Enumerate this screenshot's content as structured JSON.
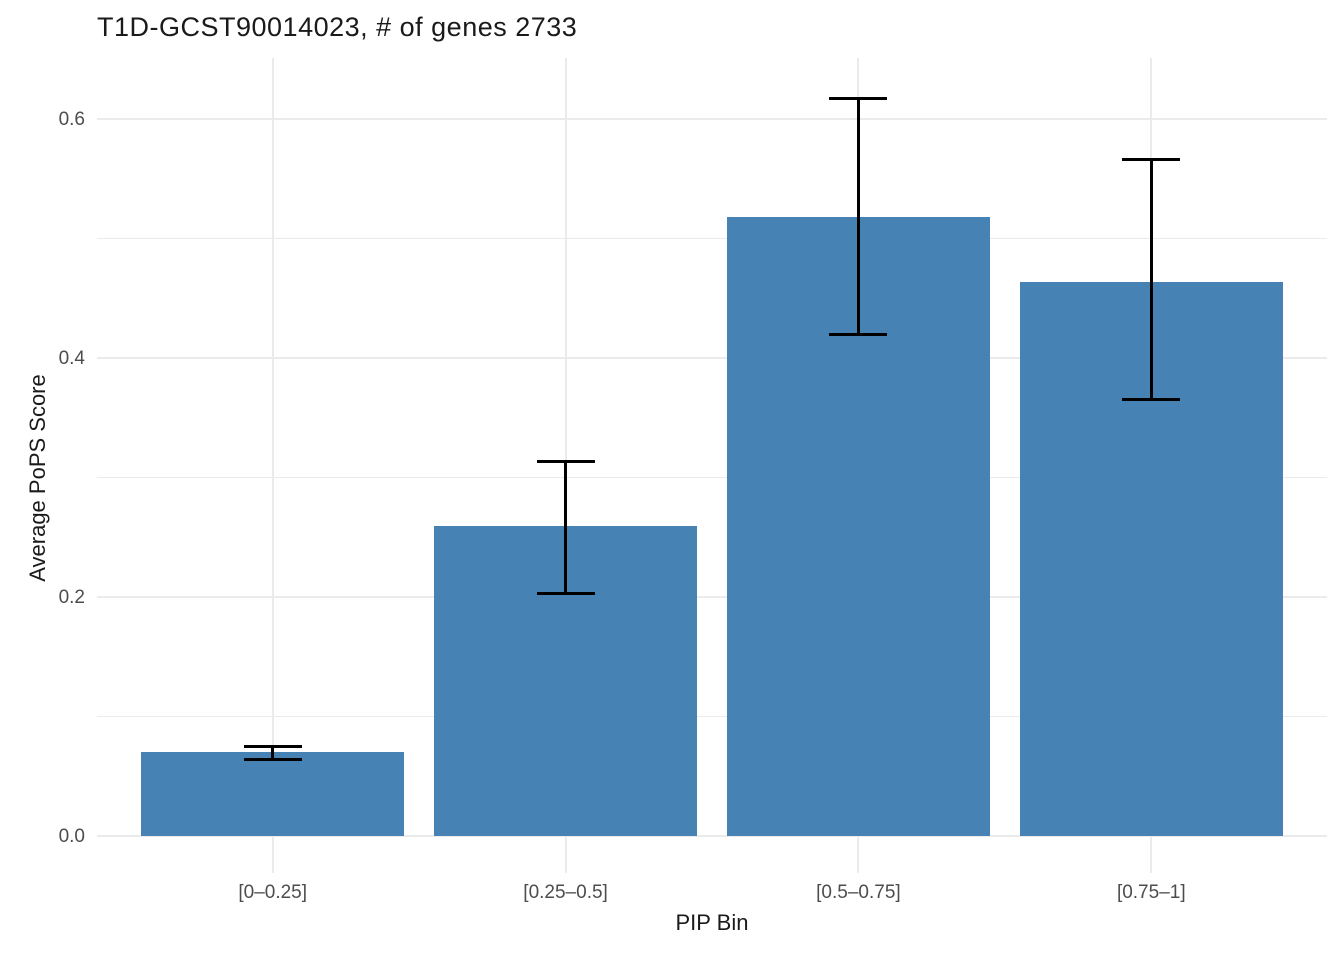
{
  "chart_data": {
    "type": "bar",
    "title": "T1D-GCST90014023, # of genes 2733",
    "xlabel": "PIP Bin",
    "ylabel": "Average PoPS Score",
    "categories": [
      "[0–0.25]",
      "[0.25–0.5]",
      "[0.5–0.75]",
      "[0.75–1]"
    ],
    "values": [
      0.07,
      0.259,
      0.518,
      0.464
    ],
    "error_low": [
      0.064,
      0.203,
      0.42,
      0.365
    ],
    "error_high": [
      0.075,
      0.313,
      0.617,
      0.566
    ],
    "y_ticks": [
      0.0,
      0.2,
      0.4,
      0.6
    ],
    "y_tick_labels": [
      "0.0",
      "0.2",
      "0.4",
      "0.6"
    ],
    "y_minor_ticks": [
      0.1,
      0.3,
      0.5
    ],
    "ylim": [
      0,
      0.65
    ],
    "grid": true,
    "legend_position": "none",
    "colors": {
      "bar": "#4682B4",
      "error_bar": "#000000",
      "grid": "#EBEBEB",
      "axis_text": "#4D4D4D",
      "title_text": "#1a1a1a"
    }
  }
}
